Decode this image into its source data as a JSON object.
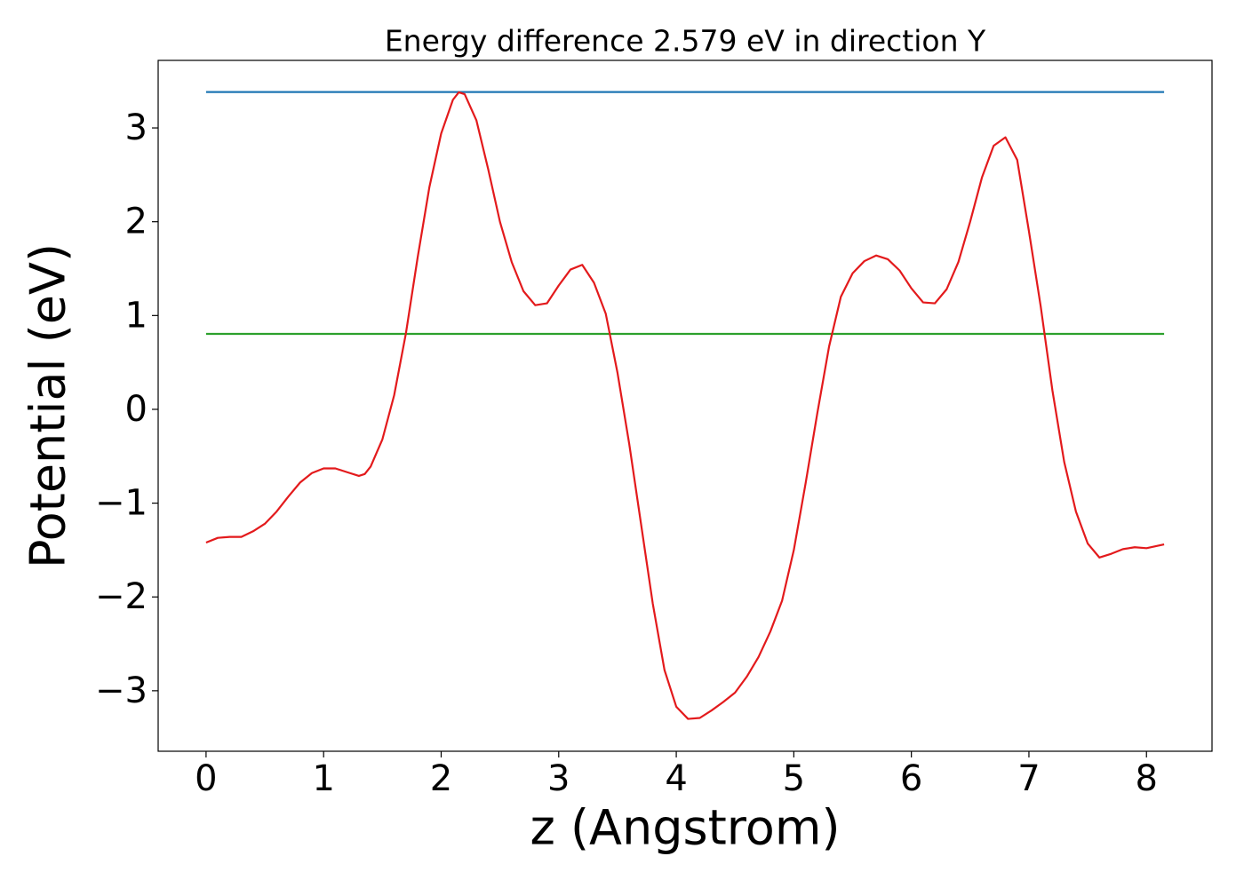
{
  "chart_data": {
    "type": "line",
    "title": "Energy difference 2.579 eV in direction Y",
    "x_label": "z (Angstrom)",
    "y_label": "Potential (eV)",
    "xlim": [
      -0.4075,
      8.5575
    ],
    "ylim": [
      -3.645,
      3.72
    ],
    "xticks": [
      0,
      1,
      2,
      3,
      4,
      5,
      6,
      7,
      8
    ],
    "yticks": [
      {
        "value": -3,
        "label": "−3"
      },
      {
        "value": -2,
        "label": "−2"
      },
      {
        "value": -1,
        "label": "−1"
      },
      0,
      1,
      2,
      3
    ],
    "series": [
      {
        "color": "#1f77b4",
        "x": [
          0,
          8.15
        ],
        "values": [
          3.383,
          3.383
        ]
      },
      {
        "color": "#2ca02c",
        "x": [
          0,
          8.15
        ],
        "values": [
          0.804,
          0.804
        ]
      },
      {
        "color": "#e31a1c",
        "x": [
          0,
          0.1,
          0.2,
          0.3,
          0.4,
          0.5,
          0.6,
          0.7,
          0.8,
          0.9,
          1.0,
          1.1,
          1.2,
          1.3,
          1.35,
          1.4,
          1.5,
          1.6,
          1.7,
          1.8,
          1.9,
          2.0,
          2.1,
          2.15,
          2.2,
          2.3,
          2.4,
          2.5,
          2.6,
          2.7,
          2.8,
          2.9,
          3.0,
          3.1,
          3.2,
          3.3,
          3.4,
          3.5,
          3.6,
          3.7,
          3.8,
          3.9,
          4.0,
          4.1,
          4.2,
          4.3,
          4.4,
          4.5,
          4.6,
          4.7,
          4.8,
          4.9,
          5.0,
          5.1,
          5.2,
          5.3,
          5.4,
          5.5,
          5.6,
          5.7,
          5.8,
          5.9,
          6.0,
          6.1,
          6.2,
          6.3,
          6.4,
          6.5,
          6.6,
          6.7,
          6.8,
          6.9,
          7.0,
          7.1,
          7.2,
          7.3,
          7.4,
          7.5,
          7.6,
          7.7,
          7.8,
          7.9,
          8.0,
          8.15
        ],
        "values": [
          -1.42,
          -1.37,
          -1.36,
          -1.36,
          -1.3,
          -1.22,
          -1.09,
          -0.93,
          -0.78,
          -0.68,
          -0.63,
          -0.63,
          -0.67,
          -0.71,
          -0.69,
          -0.61,
          -0.32,
          0.15,
          0.81,
          1.62,
          2.37,
          2.94,
          3.3,
          3.38,
          3.36,
          3.08,
          2.56,
          2.0,
          1.57,
          1.26,
          1.11,
          1.13,
          1.32,
          1.49,
          1.54,
          1.35,
          1.02,
          0.39,
          -0.37,
          -1.22,
          -2.07,
          -2.78,
          -3.17,
          -3.3,
          -3.29,
          -3.21,
          -3.12,
          -3.02,
          -2.85,
          -2.64,
          -2.37,
          -2.04,
          -1.5,
          -0.79,
          -0.04,
          0.67,
          1.2,
          1.45,
          1.58,
          1.64,
          1.6,
          1.48,
          1.29,
          1.14,
          1.13,
          1.28,
          1.57,
          2.0,
          2.47,
          2.81,
          2.9,
          2.66,
          1.9,
          1.1,
          0.2,
          -0.56,
          -1.09,
          -1.43,
          -1.58,
          -1.54,
          -1.49,
          -1.47,
          -1.48,
          -1.44
        ]
      }
    ]
  }
}
